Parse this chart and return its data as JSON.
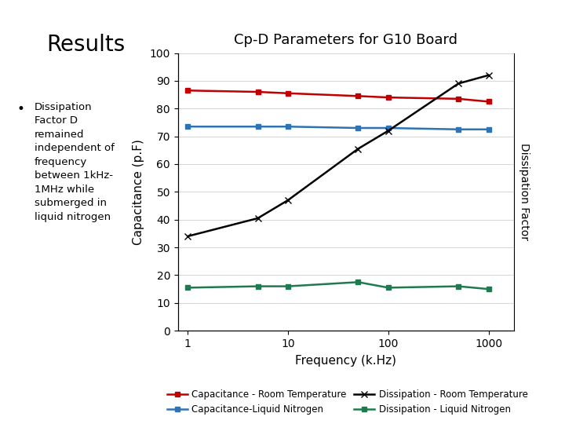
{
  "title": "Cp-D Parameters for G10 Board",
  "xlabel": "Frequency (k.Hz)",
  "ylabel_left": "Capacitance (p.F)",
  "ylabel_right": "Dissipation Factor",
  "left_title": "Results",
  "bullet_text": "Dissipation\nFactor D\nremained\nindependent of\nfrequency\nbetween 1kHz-\n1MHz while\nsubmerged in\nliquid nitrogen",
  "freq_khz": [
    1,
    5,
    10,
    50,
    100,
    500,
    1000
  ],
  "cap_room_temp": [
    86.5,
    86.0,
    85.5,
    84.5,
    84.0,
    83.5,
    82.5
  ],
  "cap_liquid_n2": [
    73.5,
    73.5,
    73.5,
    73.0,
    73.0,
    72.5,
    72.5
  ],
  "diss_room_temp": [
    34.0,
    40.5,
    47.0,
    65.5,
    72.0,
    89.0,
    92.0
  ],
  "diss_liquid_n2": [
    15.5,
    16.0,
    16.0,
    17.5,
    15.5,
    16.0,
    15.0
  ],
  "color_cap_room": "#c00000",
  "color_cap_ln2": "#2e74b5",
  "color_diss_room": "#000000",
  "color_diss_ln2": "#1f7a4f",
  "ylim": [
    0,
    100
  ],
  "bg_color": "#ffffff",
  "legend_labels": [
    "Capacitance - Room Temperature",
    "Capacitance-Liquid Nitrogen",
    "Dissipation - Room Temperature",
    "Dissipation - Liquid Nitrogen"
  ]
}
